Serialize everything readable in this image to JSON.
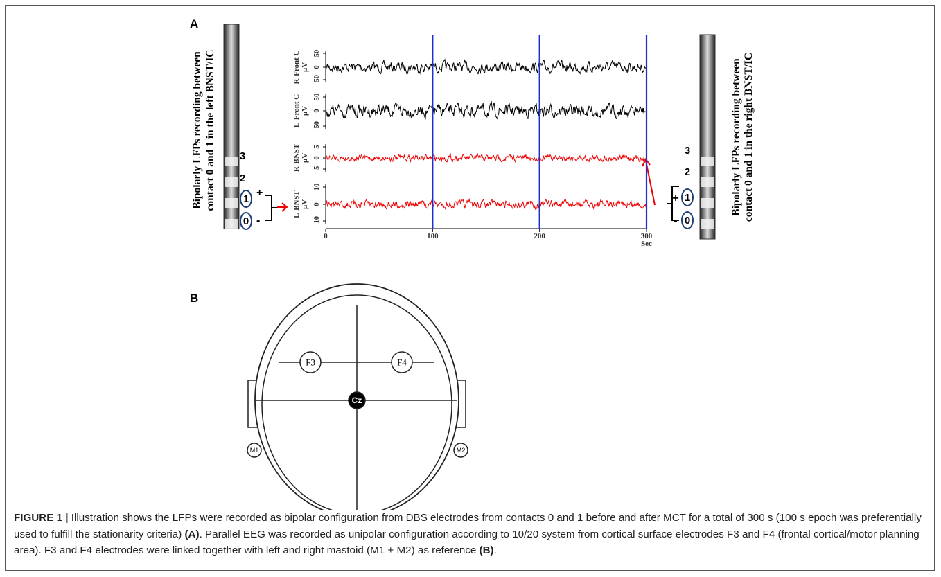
{
  "panel_a": {
    "label": "A",
    "left_text": [
      "Bipolarly LFPs recording between",
      "contact 0 and 1 in the left BNST/IC"
    ],
    "right_text": [
      "Bipolarly LFPs recording between",
      "contact 0 and 1 in the right BNST/IC"
    ],
    "contacts": [
      "3",
      "2",
      "1",
      "0"
    ],
    "signs": [
      "+",
      "-"
    ],
    "channels": [
      {
        "name": "R-Front C",
        "unit": "µV",
        "ticks": [
          "50",
          "0",
          "-50"
        ]
      },
      {
        "name": "L-Front C",
        "unit": "µV",
        "ticks": [
          "50",
          "0",
          "-50"
        ]
      },
      {
        "name": "R-BNST",
        "unit": "µV",
        "ticks": [
          "5",
          "0",
          "-5"
        ]
      },
      {
        "name": "L-BNST",
        "unit": "µV",
        "ticks": [
          "10",
          "0",
          "-10"
        ]
      }
    ],
    "x_ticks": [
      "0",
      "100",
      "200",
      "300"
    ],
    "x_unit": "Sec"
  },
  "panel_b": {
    "label": "B",
    "electrodes": [
      "F3",
      "F4",
      "Cz",
      "M1",
      "M2"
    ]
  },
  "caption": {
    "label": "FIGURE 1 |",
    "text_1": " Illustration shows the LFPs were recorded as bipolar configuration from DBS electrodes from contacts 0 and 1 before and after MCT for a total of 300 s (100 s epoch was preferentially used to fulfill the stationarity criteria) ",
    "ref_a": "(A)",
    "text_2": ". Parallel EEG was recorded as unipolar configuration according to 10/20 system from cortical surface electrodes F3 and F4 (frontal cortical/motor planning area). F3 and F4 electrodes were linked together with left and right mastoid (M1 + M2) as reference ",
    "ref_b": "(B)",
    "text_3": "."
  }
}
